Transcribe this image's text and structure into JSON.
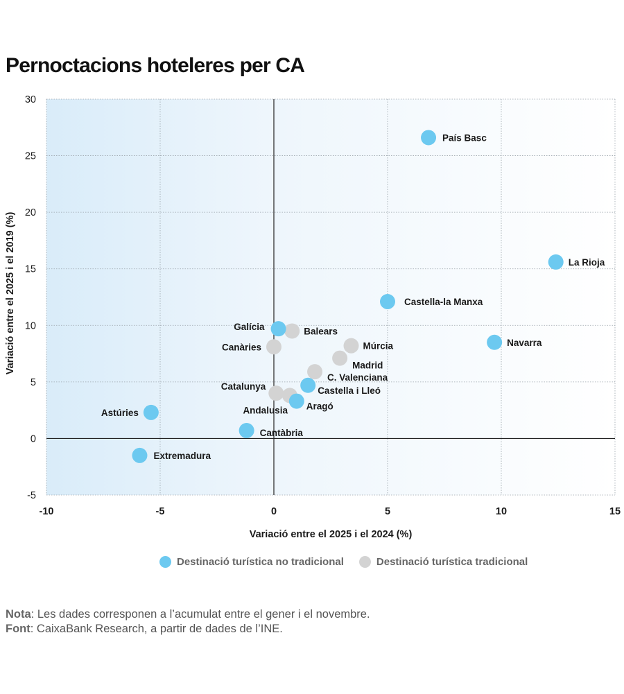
{
  "chart_data": {
    "type": "scatter",
    "title": "Pernoctacions hoteleres per CA",
    "xlabel": "Variació entre el 2025 i el 2024 (%)",
    "ylabel": "Variació entre el 2025 i el 2019 (%)",
    "xlim": [
      -10,
      15
    ],
    "ylim": [
      -5,
      30
    ],
    "xticks": [
      -10,
      -5,
      0,
      5,
      10,
      15
    ],
    "yticks": [
      -5,
      0,
      5,
      10,
      15,
      20,
      25,
      30
    ],
    "grid": true,
    "legend_position": "bottom",
    "series": [
      {
        "name": "Destinació turística no tradicional",
        "color": "#6cc9f0",
        "points": [
          {
            "label": "País Basc",
            "x": 6.8,
            "y": 26.6
          },
          {
            "label": "La Rioja",
            "x": 12.4,
            "y": 15.6
          },
          {
            "label": "Castella-la Manxa",
            "x": 5.0,
            "y": 12.1
          },
          {
            "label": "Navarra",
            "x": 9.7,
            "y": 8.5
          },
          {
            "label": "Galícia",
            "x": 0.2,
            "y": 9.7
          },
          {
            "label": "Castella i Lleó",
            "x": 1.5,
            "y": 4.7
          },
          {
            "label": "Aragó",
            "x": 1.0,
            "y": 3.3
          },
          {
            "label": "Astúries",
            "x": -5.4,
            "y": 2.3
          },
          {
            "label": "Cantàbria",
            "x": -1.2,
            "y": 0.7
          },
          {
            "label": "Extremadura",
            "x": -5.9,
            "y": -1.5
          }
        ]
      },
      {
        "name": "Destinació turística tradicional",
        "color": "#d3d3d3",
        "points": [
          {
            "label": "Balears",
            "x": 0.8,
            "y": 9.5
          },
          {
            "label": "Canàries",
            "x": 0.0,
            "y": 8.1
          },
          {
            "label": "Múrcia",
            "x": 3.4,
            "y": 8.2
          },
          {
            "label": "Madrid",
            "x": 2.9,
            "y": 7.1
          },
          {
            "label": "C. Valenciana",
            "x": 1.8,
            "y": 5.9
          },
          {
            "label": "Catalunya",
            "x": 0.1,
            "y": 4.0
          },
          {
            "label": "Andalusia",
            "x": 0.7,
            "y": 3.8
          }
        ]
      }
    ]
  },
  "legend": {
    "items": [
      {
        "label": "Destinació turística no tradicional",
        "color": "#6cc9f0"
      },
      {
        "label": "Destinació turística tradicional",
        "color": "#d3d3d3"
      }
    ]
  },
  "notes": {
    "nota_label": "Nota",
    "nota_text": ": Les dades corresponen a l’acumulat entre el gener i el novembre.",
    "font_label": "Font",
    "font_text": ": CaixaBank Research, a partir de dades de l’INE."
  }
}
